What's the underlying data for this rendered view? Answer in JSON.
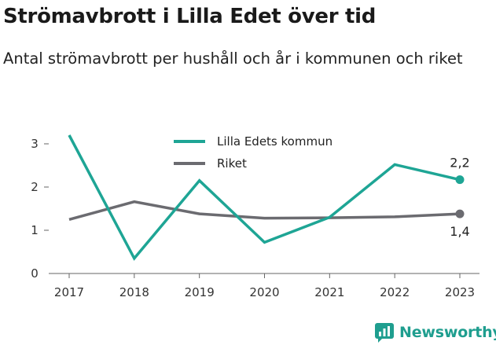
{
  "header": {
    "title": "Strömavbrott i Lilla Edet över tid",
    "subtitle": "Antal strömavbrott per hushåll och år i kommunen och riket"
  },
  "brand": {
    "name": "Newsworthy",
    "color": "#1f9e8f",
    "icon": "newsworthy-logo-icon"
  },
  "chart_data": {
    "type": "line",
    "title": "Strömavbrott i Lilla Edet över tid",
    "subtitle": "Antal strömavbrott per hushåll och år i kommunen och riket",
    "xlabel": "",
    "ylabel": "",
    "x": [
      "2017",
      "2018",
      "2019",
      "2020",
      "2021",
      "2022",
      "2023"
    ],
    "ylim": [
      0,
      3.3
    ],
    "yticks": [
      "0",
      "1",
      "2",
      "3"
    ],
    "grid": false,
    "legend_position": "top-center",
    "series": [
      {
        "name": "Lilla Edets kommun",
        "color": "#1ea595",
        "values": [
          3.2,
          0.35,
          2.15,
          0.72,
          1.3,
          2.52,
          2.17
        ],
        "end_label": "2,2"
      },
      {
        "name": "Riket",
        "color": "#6b6b70",
        "values": [
          1.25,
          1.66,
          1.38,
          1.28,
          1.29,
          1.31,
          1.38
        ],
        "end_label": "1,4"
      }
    ]
  }
}
